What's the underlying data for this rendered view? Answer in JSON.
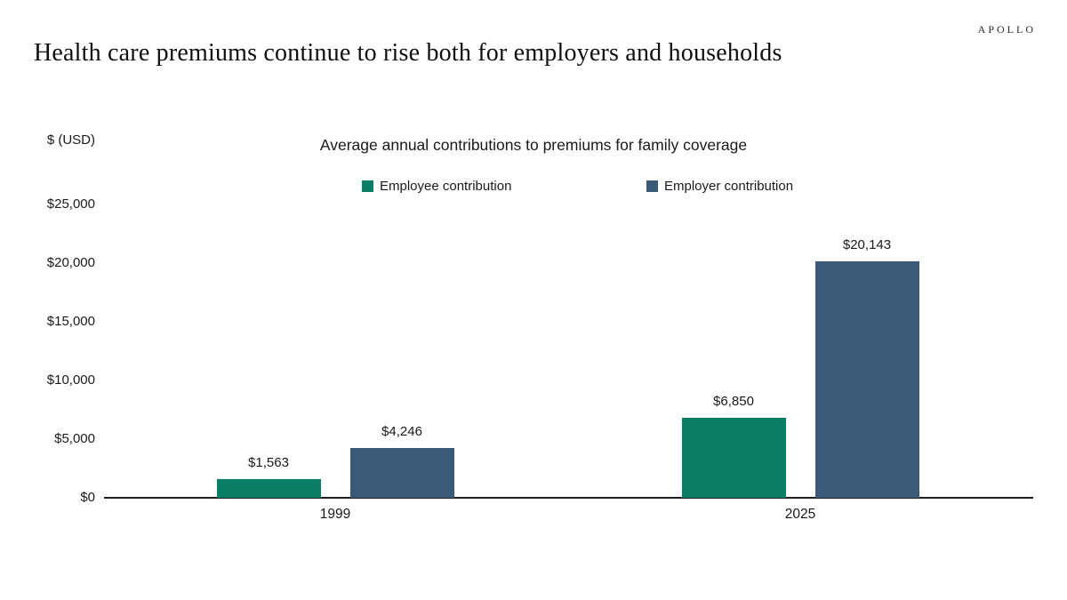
{
  "brand": {
    "logo": "APOLLO"
  },
  "header": {
    "title": "Health care premiums continue to rise both for employers and households"
  },
  "chart_data": {
    "type": "bar",
    "title": "Average annual contributions to premiums for family coverage",
    "ylabel": "$ (USD)",
    "xlabel": "",
    "categories": [
      "1999",
      "2025"
    ],
    "series": [
      {
        "name": "Employee contribution",
        "color": "#0a7e64",
        "values": [
          1563,
          6850
        ],
        "labels": [
          "$1,563",
          "$6,850"
        ]
      },
      {
        "name": "Employer contribution",
        "color": "#3b5a77",
        "values": [
          4246,
          20143
        ],
        "labels": [
          "$4,246",
          "$20,143"
        ]
      }
    ],
    "ylim": [
      0,
      25000
    ],
    "yticks": [
      {
        "value": 0,
        "label": "$0"
      },
      {
        "value": 5000,
        "label": "$5,000"
      },
      {
        "value": 10000,
        "label": "$10,000"
      },
      {
        "value": 15000,
        "label": "$15,000"
      },
      {
        "value": 20000,
        "label": "$20,000"
      },
      {
        "value": 25000,
        "label": "$25,000"
      }
    ],
    "grid": false,
    "legend_position": "top"
  }
}
